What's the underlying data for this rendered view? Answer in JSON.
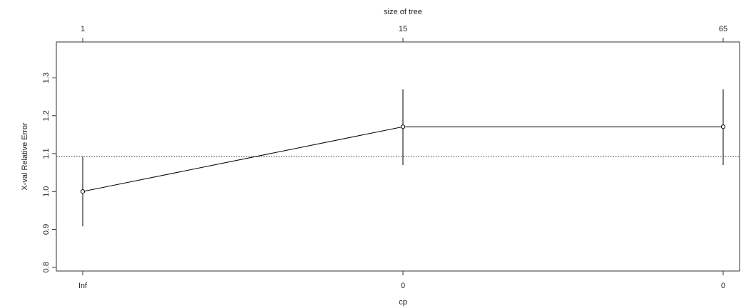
{
  "chart_data": {
    "type": "line",
    "title": "",
    "xlabel": "cp",
    "ylabel": "X-val Relative Error",
    "top_axis_title": "size of tree",
    "x_tick_labels": [
      "Inf",
      "0",
      "0"
    ],
    "top_tick_labels": [
      "1",
      "15",
      "65"
    ],
    "y_ticks": [
      "0.8",
      "0.9",
      "1.0",
      "1.1",
      "1.2",
      "1.3"
    ],
    "ylim": [
      0.79,
      1.395
    ],
    "points": [
      {
        "cp": "Inf",
        "size": "1",
        "y": 1.0,
        "err_low": 0.908,
        "err_high": 1.092
      },
      {
        "cp": "0",
        "size": "15",
        "y": 1.171,
        "err_low": 1.07,
        "err_high": 1.27
      },
      {
        "cp": "0",
        "size": "65",
        "y": 1.171,
        "err_low": 1.07,
        "err_high": 1.27
      }
    ],
    "reference_line": {
      "y": 1.092,
      "style": "dotted"
    },
    "grid": false,
    "line_color": "#000000"
  }
}
